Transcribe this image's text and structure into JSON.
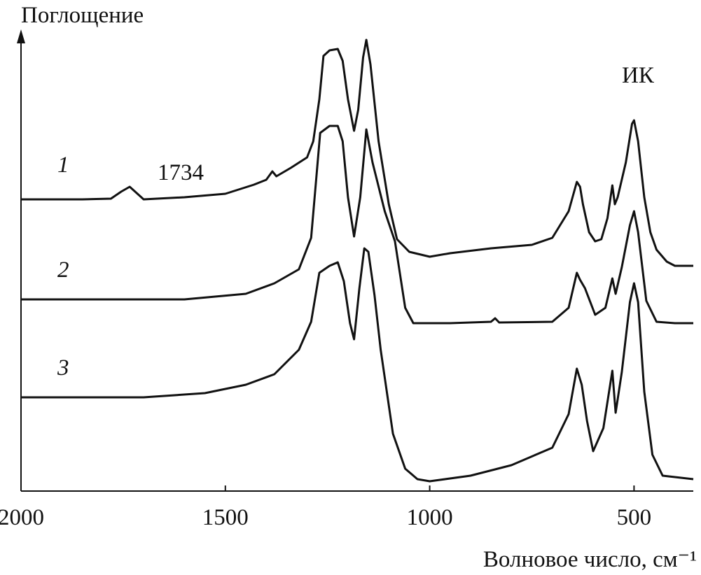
{
  "chart_data": {
    "type": "line",
    "title": "Поглощение",
    "x_label": "Волновое число, см⁻¹",
    "annotations": [
      "1734",
      "ИК"
    ],
    "xlim": [
      2000,
      355
    ],
    "xticks": [
      2000,
      1500,
      1000,
      500
    ],
    "ylim": [
      0,
      657
    ],
    "color": "#111111",
    "series": [
      {
        "name": "1",
        "color": "#111111",
        "x": [
          2000,
          1850,
          1780,
          1755,
          1734,
          1715,
          1700,
          1600,
          1500,
          1430,
          1400,
          1385,
          1375,
          1340,
          1300,
          1285,
          1270,
          1260,
          1245,
          1225,
          1213,
          1200,
          1185,
          1175,
          1163,
          1155,
          1145,
          1125,
          1100,
          1080,
          1050,
          1000,
          950,
          850,
          750,
          700,
          660,
          640,
          632,
          625,
          610,
          595,
          580,
          565,
          553,
          547,
          540,
          520,
          505,
          500,
          490,
          475,
          460,
          445,
          420,
          400,
          355
        ],
        "values": [
          417,
          417,
          418,
          428,
          435,
          425,
          417,
          420,
          425,
          438,
          445,
          457,
          450,
          462,
          477,
          500,
          560,
          622,
          630,
          632,
          615,
          560,
          515,
          545,
          620,
          645,
          610,
          500,
          410,
          360,
          342,
          335,
          340,
          347,
          352,
          362,
          400,
          442,
          435,
          410,
          370,
          357,
          360,
          390,
          437,
          410,
          420,
          470,
          525,
          530,
          500,
          420,
          370,
          345,
          328,
          322,
          322
        ]
      },
      {
        "name": "2",
        "color": "#111111",
        "x": [
          2000,
          1800,
          1600,
          1450,
          1380,
          1320,
          1290,
          1268,
          1245,
          1225,
          1213,
          1200,
          1185,
          1170,
          1155,
          1140,
          1110,
          1085,
          1060,
          1040,
          950,
          850,
          840,
          830,
          700,
          660,
          640,
          632,
          620,
          595,
          570,
          553,
          545,
          530,
          510,
          500,
          490,
          470,
          445,
          400,
          355
        ],
        "values": [
          274,
          274,
          274,
          282,
          297,
          317,
          362,
          512,
          522,
          522,
          500,
          420,
          364,
          420,
          517,
          470,
          400,
          357,
          262,
          240,
          240,
          242,
          247,
          241,
          242,
          262,
          312,
          302,
          290,
          252,
          262,
          304,
          282,
          320,
          380,
          400,
          370,
          272,
          242,
          240,
          240
        ]
      },
      {
        "name": "3",
        "color": "#111111",
        "x": [
          2000,
          1850,
          1700,
          1550,
          1450,
          1380,
          1320,
          1290,
          1270,
          1245,
          1225,
          1210,
          1195,
          1185,
          1172,
          1160,
          1150,
          1135,
          1120,
          1090,
          1060,
          1030,
          1000,
          900,
          800,
          700,
          660,
          640,
          628,
          615,
          600,
          575,
          553,
          545,
          530,
          510,
          500,
          490,
          475,
          455,
          430,
          355
        ],
        "values": [
          134,
          134,
          134,
          140,
          152,
          167,
          202,
          242,
          312,
          322,
          327,
          300,
          240,
          217,
          290,
          347,
          342,
          280,
          202,
          82,
          32,
          17,
          14,
          22,
          37,
          62,
          110,
          175,
          152,
          100,
          57,
          90,
          172,
          112,
          170,
          270,
          297,
          270,
          142,
          52,
          22,
          17
        ]
      }
    ]
  }
}
